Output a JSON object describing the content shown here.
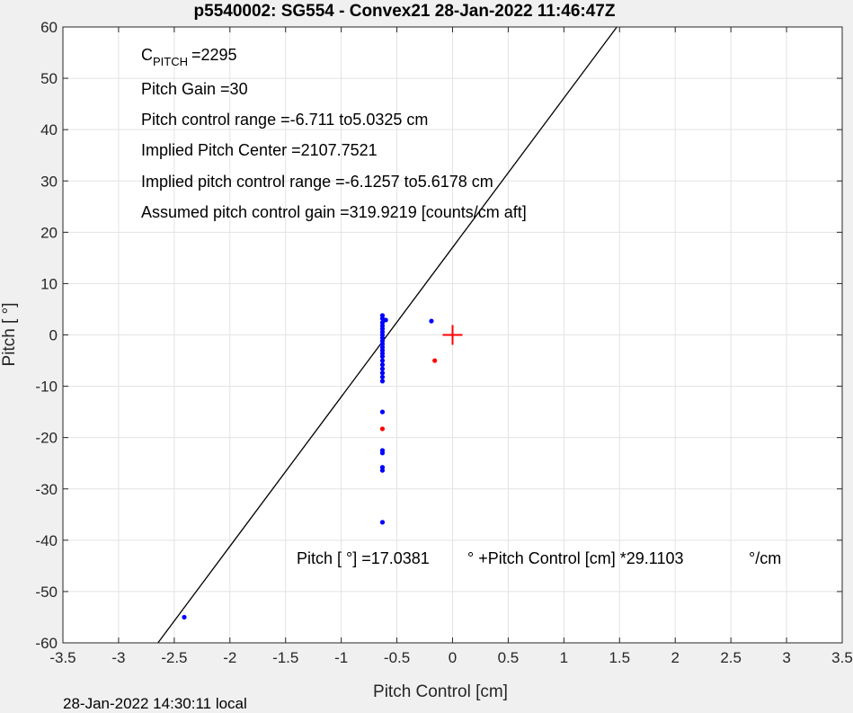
{
  "chart_data": {
    "type": "scatter",
    "title": "p5540002: SG554 - Convex21 28-Jan-2022 11:46:47Z",
    "xlabel": "Pitch Control [cm]",
    "ylabel": "Pitch [  °]",
    "xlim": [
      -3.5,
      3.5
    ],
    "ylim": [
      -60,
      60
    ],
    "xticks": [
      -3.5,
      -3,
      -2.5,
      -2,
      -1.5,
      -1,
      -0.5,
      0,
      0.5,
      1,
      1.5,
      2,
      2.5,
      3,
      3.5
    ],
    "xtick_labels": [
      "-3.5",
      "-3",
      "-2.5",
      "-2",
      "-1.5",
      "-1",
      "-0.5",
      "0",
      "0.5",
      "1",
      "1.5",
      "2",
      "2.5",
      "3",
      "3.5"
    ],
    "yticks": [
      -60,
      -50,
      -40,
      -30,
      -20,
      -10,
      0,
      10,
      20,
      30,
      40,
      50,
      60
    ],
    "ytick_labels": [
      "-60",
      "-50",
      "-40",
      "-30",
      "-20",
      "-10",
      "0",
      "10",
      "20",
      "30",
      "40",
      "50",
      "60"
    ],
    "grid": true,
    "colors": {
      "blue": "#0000ff",
      "red": "#ff0000",
      "line": "#000000",
      "grid": "#e3e3e3"
    },
    "series": [
      {
        "marker": "dot",
        "color": "#0000ff",
        "points": [
          [
            -0.63,
            3.8
          ],
          [
            -0.63,
            3.2
          ],
          [
            -0.6,
            2.9
          ],
          [
            -0.63,
            2.4
          ],
          [
            -0.63,
            1.8
          ],
          [
            -0.63,
            1.2
          ],
          [
            -0.63,
            0.6
          ],
          [
            -0.63,
            0.0
          ],
          [
            -0.63,
            -0.6
          ],
          [
            -0.63,
            -1.2
          ],
          [
            -0.63,
            -1.8
          ],
          [
            -0.63,
            -2.4
          ],
          [
            -0.63,
            -3.0
          ],
          [
            -0.63,
            -3.6
          ],
          [
            -0.63,
            -4.2
          ],
          [
            -0.63,
            -5.0
          ],
          [
            -0.63,
            -5.8
          ],
          [
            -0.63,
            -6.6
          ],
          [
            -0.63,
            -7.4
          ],
          [
            -0.63,
            -8.2
          ],
          [
            -0.63,
            -9.0
          ],
          [
            -0.63,
            -15.0
          ],
          [
            -0.63,
            -22.5
          ],
          [
            -0.63,
            -23.0
          ],
          [
            -0.63,
            -25.8
          ],
          [
            -0.63,
            -26.4
          ],
          [
            -0.63,
            -36.5
          ],
          [
            -0.19,
            2.7
          ],
          [
            -2.41,
            -55.0
          ]
        ]
      },
      {
        "marker": "dot",
        "color": "#ff0000",
        "points": [
          [
            -0.63,
            -18.3
          ],
          [
            -0.16,
            -5.0
          ]
        ]
      },
      {
        "marker": "plus",
        "color": "#ff0000",
        "points": [
          [
            0.0,
            0.0
          ]
        ]
      }
    ],
    "fit_line": {
      "intercept": 17.0381,
      "slope": 29.1103,
      "color": "#000000"
    },
    "annotations": {
      "cpitch_base": "C",
      "cpitch_sub": "PITCH",
      "cpitch_value": "=2295",
      "pitch_gain": "Pitch Gain =30",
      "pitch_control_range": "Pitch control range =-6.711 to5.0325 cm",
      "implied_center": "Implied Pitch Center =2107.7521",
      "implied_range": "Implied pitch control range =-6.1257 to5.6178 cm",
      "assumed_gain": "Assumed pitch control gain =319.9219 [counts/cm aft]",
      "equation_part1": "Pitch [  °] =17.0381",
      "equation_part2": "° +Pitch Control [cm] *29.1103",
      "equation_part3": "°/cm"
    },
    "footer": "28-Jan-2022 14:30:11 local"
  }
}
